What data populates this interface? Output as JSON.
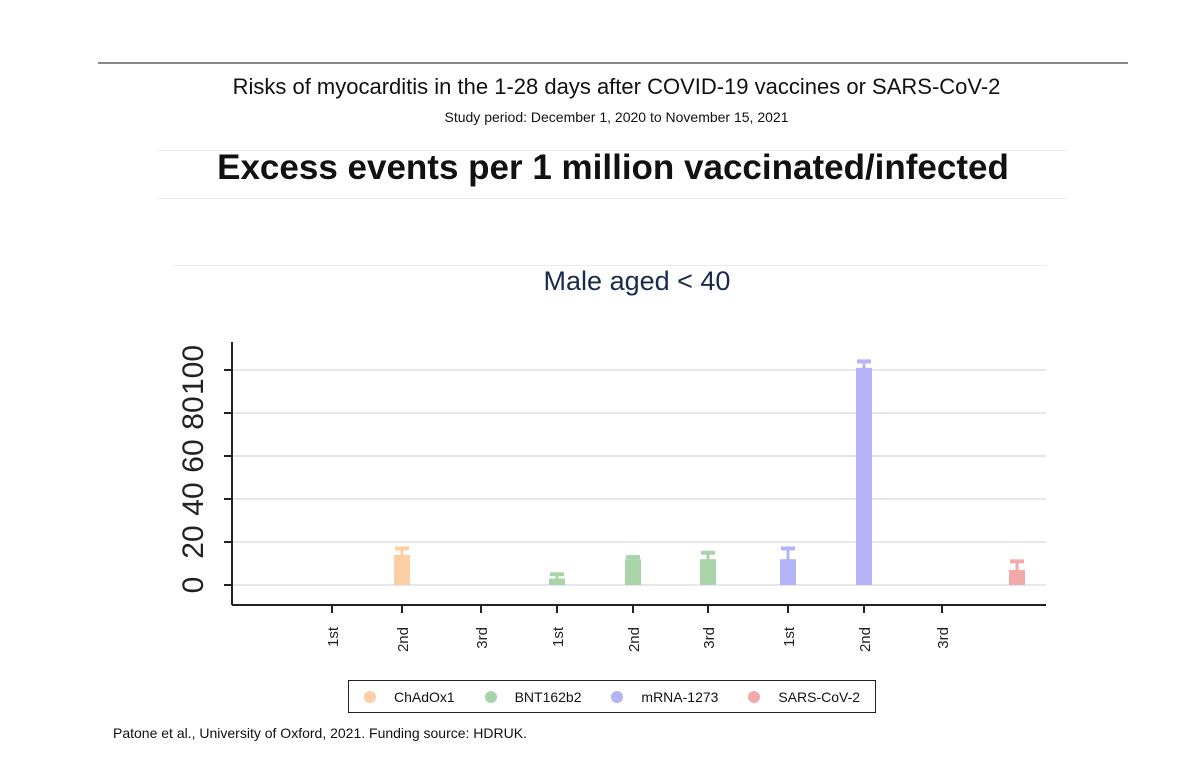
{
  "title": "Risks of myocarditis in the 1-28 days after COVID-19 vaccines or SARS-CoV-2",
  "subtitle": "Study period: December 1, 2020 to November 15, 2021",
  "heading": "Excess events per 1 million vaccinated/infected",
  "source": "Patone et al., University of Oxford, 2021. Funding source: HDRUK.",
  "chart_data": {
    "type": "bar",
    "title": "Male aged < 40",
    "xlabel": "",
    "ylabel": "",
    "ylim": [
      -9,
      112
    ],
    "yticks": [
      0,
      20,
      40,
      60,
      80,
      100
    ],
    "ytick_labels": [
      "0",
      "20",
      "40",
      "60",
      "80",
      "100"
    ],
    "categories": [
      "1st",
      "2nd",
      "3rd",
      "1st",
      "2nd",
      "3rd",
      "1st",
      "2nd",
      "3rd",
      ""
    ],
    "series": [
      {
        "name": "ChAdOx1",
        "color": "#f9cfa3",
        "points": [
          {
            "cat": 1,
            "value": 14,
            "lo": 8,
            "hi": 17
          }
        ]
      },
      {
        "name": "BNT162b2",
        "color": "#a9d3a9",
        "points": [
          {
            "cat": 3,
            "value": 3,
            "lo": 1,
            "hi": 5
          },
          {
            "cat": 4,
            "value": 12,
            "lo": 10,
            "hi": 13
          },
          {
            "cat": 5,
            "value": 12,
            "lo": 7,
            "hi": 15
          }
        ]
      },
      {
        "name": "mRNA-1273",
        "color": "#b3b3f5",
        "points": [
          {
            "cat": 6,
            "value": 12,
            "lo": 7,
            "hi": 17
          },
          {
            "cat": 7,
            "value": 101,
            "lo": 97,
            "hi": 104
          }
        ]
      },
      {
        "name": "SARS-CoV-2",
        "color": "#f2a9a9",
        "points": [
          {
            "cat": 9,
            "value": 7,
            "lo": 3,
            "hi": 11
          }
        ]
      }
    ],
    "legend": "bottom"
  }
}
